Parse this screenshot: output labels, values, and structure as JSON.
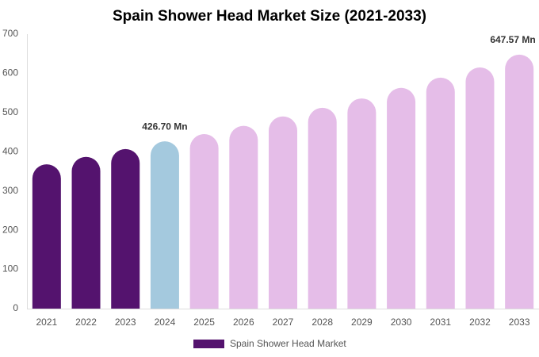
{
  "chart_data": {
    "type": "bar",
    "title": "Spain Shower Head Market Size (2021-2033)",
    "categories": [
      "2021",
      "2022",
      "2023",
      "2024",
      "2025",
      "2026",
      "2027",
      "2028",
      "2029",
      "2030",
      "2031",
      "2032",
      "2033"
    ],
    "series": [
      {
        "name": "Spain Shower Head Market",
        "color": "#54136e",
        "values": [
          368,
          387,
          407,
          426.7,
          445,
          466,
          490,
          512,
          536,
          563,
          589,
          615,
          647.57
        ],
        "value_labels": [
          null,
          null,
          null,
          "426.70 Mn",
          null,
          null,
          null,
          null,
          null,
          null,
          null,
          null,
          "647.57 Mn"
        ],
        "colors": [
          "#54136e",
          "#54136e",
          "#54136e",
          "#a4c9de",
          "#e5bde8",
          "#e5bde8",
          "#e5bde8",
          "#e5bde8",
          "#e5bde8",
          "#e5bde8",
          "#e5bde8",
          "#e5bde8",
          "#e5bde8"
        ]
      }
    ],
    "ylim": [
      0,
      700
    ],
    "yticks": [
      0,
      100,
      200,
      300,
      400,
      500,
      600,
      700
    ],
    "grid": false
  }
}
